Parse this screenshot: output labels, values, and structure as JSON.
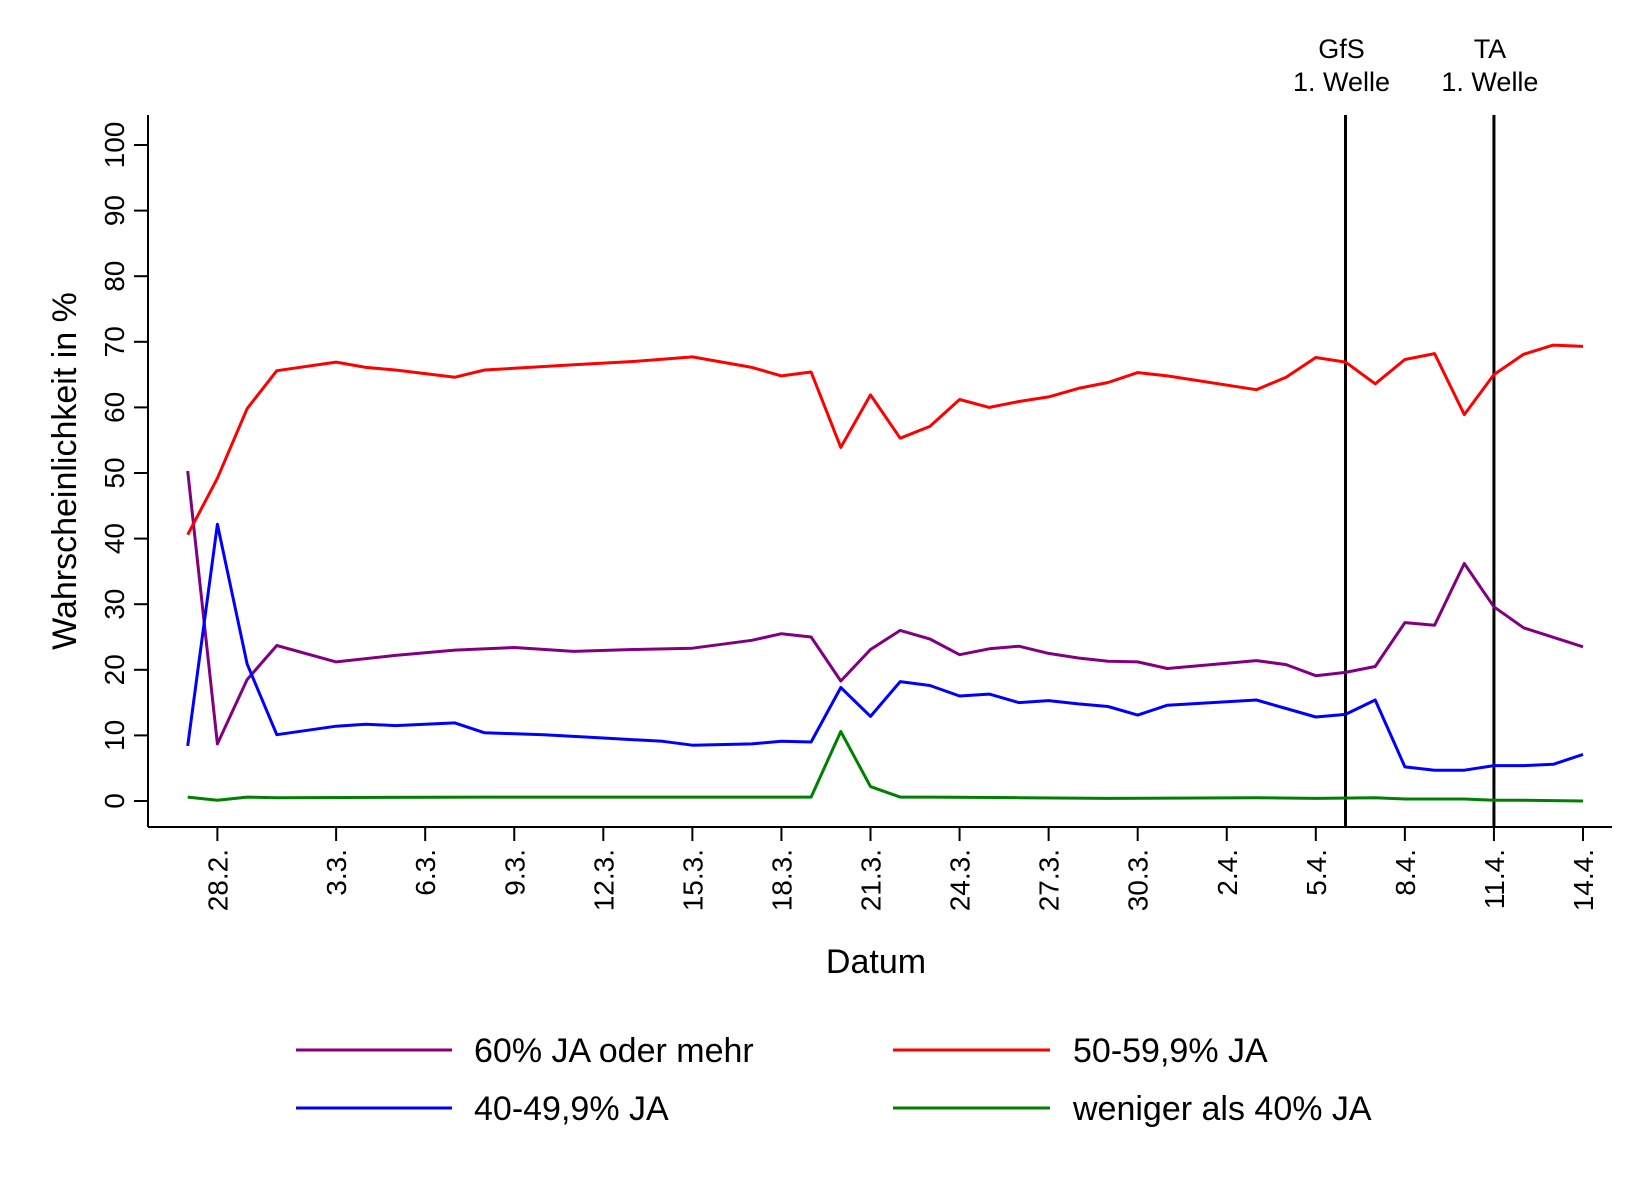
{
  "chart_data": {
    "type": "line",
    "xlabel": "Datum",
    "ylabel": "Wahrscheinlichkeit in %",
    "ylim": [
      -4,
      104
    ],
    "yticks": [
      0,
      10,
      20,
      30,
      40,
      50,
      60,
      70,
      80,
      90,
      100
    ],
    "x_axis": {
      "unit": "day",
      "range": [
        "26.2.",
        "14.4."
      ],
      "tick_labels": [
        "28.2.",
        "3.3.",
        "6.3.",
        "9.3.",
        "12.3.",
        "15.3.",
        "18.3.",
        "21.3.",
        "24.3.",
        "27.3.",
        "30.3.",
        "2.4.",
        "5.4.",
        "8.4.",
        "11.4.",
        "14.4."
      ],
      "tick_days": [
        "28.2.",
        "3.3.",
        "6.3.",
        "9.3.",
        "12.3.",
        "15.3.",
        "18.3.",
        "21.3.",
        "24.3.",
        "27.3.",
        "30.3.",
        "2.4.",
        "5.4.",
        "8.4.",
        "11.4.",
        "14.4."
      ]
    },
    "grid": false,
    "legend_position": "bottom",
    "events": [
      {
        "date": "6.4.",
        "label_line1": "GfS",
        "label_line2": "1. Welle"
      },
      {
        "date": "11.4.",
        "label_line1": "TA",
        "label_line2": "1. Welle"
      }
    ],
    "series": [
      {
        "name": "60% JA oder mehr",
        "color": "#800080",
        "points": [
          [
            "27.2.",
            50.3
          ],
          [
            "28.2.",
            8.7
          ],
          [
            "29.2.",
            18.5
          ],
          [
            "1.3.",
            23.7
          ],
          [
            "3.3.",
            21.2
          ],
          [
            "5.3.",
            22.2
          ],
          [
            "7.3.",
            23.0
          ],
          [
            "9.3.",
            23.4
          ],
          [
            "11.3.",
            22.8
          ],
          [
            "13.3.",
            23.1
          ],
          [
            "15.3.",
            23.3
          ],
          [
            "17.3.",
            24.5
          ],
          [
            "18.3.",
            25.5
          ],
          [
            "19.3.",
            25.0
          ],
          [
            "20.3.",
            18.3
          ],
          [
            "21.3.",
            23.1
          ],
          [
            "22.3.",
            26.0
          ],
          [
            "23.3.",
            24.7
          ],
          [
            "24.3.",
            22.3
          ],
          [
            "25.3.",
            23.2
          ],
          [
            "26.3.",
            23.6
          ],
          [
            "27.3.",
            22.5
          ],
          [
            "28.3.",
            21.8
          ],
          [
            "29.3.",
            21.3
          ],
          [
            "30.3.",
            21.2
          ],
          [
            "31.3.",
            20.2
          ],
          [
            "3.4.",
            21.4
          ],
          [
            "4.4.",
            20.8
          ],
          [
            "5.4.",
            19.1
          ],
          [
            "6.4.",
            19.6
          ],
          [
            "7.4.",
            20.5
          ],
          [
            "8.4.",
            27.2
          ],
          [
            "9.4.",
            26.8
          ],
          [
            "10.4.",
            36.2
          ],
          [
            "11.4.",
            29.6
          ],
          [
            "12.4.",
            26.4
          ],
          [
            "14.4.",
            23.5
          ]
        ]
      },
      {
        "name": "50-59,9% JA",
        "color": "#ff0000",
        "points": [
          [
            "27.2.",
            40.6
          ],
          [
            "28.2.",
            49.2
          ],
          [
            "29.2.",
            59.8
          ],
          [
            "1.3.",
            65.6
          ],
          [
            "3.3.",
            66.9
          ],
          [
            "4.3.",
            66.1
          ],
          [
            "5.3.",
            65.7
          ],
          [
            "7.3.",
            64.6
          ],
          [
            "8.3.",
            65.7
          ],
          [
            "11.3.",
            66.5
          ],
          [
            "13.3.",
            67.0
          ],
          [
            "15.3.",
            67.7
          ],
          [
            "17.3.",
            66.1
          ],
          [
            "18.3.",
            64.8
          ],
          [
            "19.3.",
            65.4
          ],
          [
            "20.3.",
            53.9
          ],
          [
            "21.3.",
            61.9
          ],
          [
            "22.3.",
            55.3
          ],
          [
            "23.3.",
            57.1
          ],
          [
            "24.3.",
            61.2
          ],
          [
            "25.3.",
            60.0
          ],
          [
            "26.3.",
            60.9
          ],
          [
            "27.3.",
            61.6
          ],
          [
            "28.3.",
            62.9
          ],
          [
            "29.3.",
            63.8
          ],
          [
            "30.3.",
            65.3
          ],
          [
            "31.3.",
            64.8
          ],
          [
            "3.4.",
            62.7
          ],
          [
            "4.4.",
            64.6
          ],
          [
            "5.4.",
            67.6
          ],
          [
            "6.4.",
            66.9
          ],
          [
            "7.4.",
            63.6
          ],
          [
            "8.4.",
            67.3
          ],
          [
            "9.4.",
            68.2
          ],
          [
            "10.4.",
            58.9
          ],
          [
            "11.4.",
            65.0
          ],
          [
            "12.4.",
            68.1
          ],
          [
            "13.4.",
            69.5
          ],
          [
            "14.4.",
            69.3
          ]
        ]
      },
      {
        "name": "40-49,9% JA",
        "color": "#0000ff",
        "points": [
          [
            "27.2.",
            8.4
          ],
          [
            "28.2.",
            42.2
          ],
          [
            "29.2.",
            20.9
          ],
          [
            "1.3.",
            10.1
          ],
          [
            "3.3.",
            11.4
          ],
          [
            "4.3.",
            11.7
          ],
          [
            "5.3.",
            11.5
          ],
          [
            "7.3.",
            11.9
          ],
          [
            "8.3.",
            10.4
          ],
          [
            "10.3.",
            10.1
          ],
          [
            "12.3.",
            9.6
          ],
          [
            "14.3.",
            9.1
          ],
          [
            "15.3.",
            8.5
          ],
          [
            "17.3.",
            8.7
          ],
          [
            "18.3.",
            9.1
          ],
          [
            "19.3.",
            9.0
          ],
          [
            "20.3.",
            17.3
          ],
          [
            "21.3.",
            12.9
          ],
          [
            "22.3.",
            18.2
          ],
          [
            "23.3.",
            17.6
          ],
          [
            "24.3.",
            16.0
          ],
          [
            "25.3.",
            16.3
          ],
          [
            "26.3.",
            15.0
          ],
          [
            "27.3.",
            15.3
          ],
          [
            "28.3.",
            14.8
          ],
          [
            "29.3.",
            14.4
          ],
          [
            "30.3.",
            13.1
          ],
          [
            "31.3.",
            14.6
          ],
          [
            "3.4.",
            15.4
          ],
          [
            "4.4.",
            14.1
          ],
          [
            "5.4.",
            12.8
          ],
          [
            "6.4.",
            13.2
          ],
          [
            "7.4.",
            15.4
          ],
          [
            "8.4.",
            5.2
          ],
          [
            "9.4.",
            4.7
          ],
          [
            "10.4.",
            4.7
          ],
          [
            "11.4.",
            5.4
          ],
          [
            "12.4.",
            5.4
          ],
          [
            "13.4.",
            5.6
          ],
          [
            "14.4.",
            7.1
          ]
        ]
      },
      {
        "name": "weniger als 40% JA",
        "color": "#008000",
        "points": [
          [
            "27.2.",
            0.6
          ],
          [
            "28.2.",
            0.1
          ],
          [
            "29.2.",
            0.6
          ],
          [
            "1.3.",
            0.5
          ],
          [
            "8.3.",
            0.6
          ],
          [
            "15.3.",
            0.6
          ],
          [
            "19.3.",
            0.6
          ],
          [
            "20.3.",
            10.6
          ],
          [
            "21.3.",
            2.2
          ],
          [
            "22.3.",
            0.6
          ],
          [
            "23.3.",
            0.6
          ],
          [
            "26.3.",
            0.5
          ],
          [
            "29.3.",
            0.4
          ],
          [
            "3.4.",
            0.5
          ],
          [
            "5.4.",
            0.4
          ],
          [
            "7.4.",
            0.5
          ],
          [
            "8.4.",
            0.3
          ],
          [
            "10.4.",
            0.3
          ],
          [
            "11.4.",
            0.1
          ],
          [
            "12.4.",
            0.1
          ],
          [
            "14.4.",
            0.0
          ]
        ]
      }
    ]
  }
}
